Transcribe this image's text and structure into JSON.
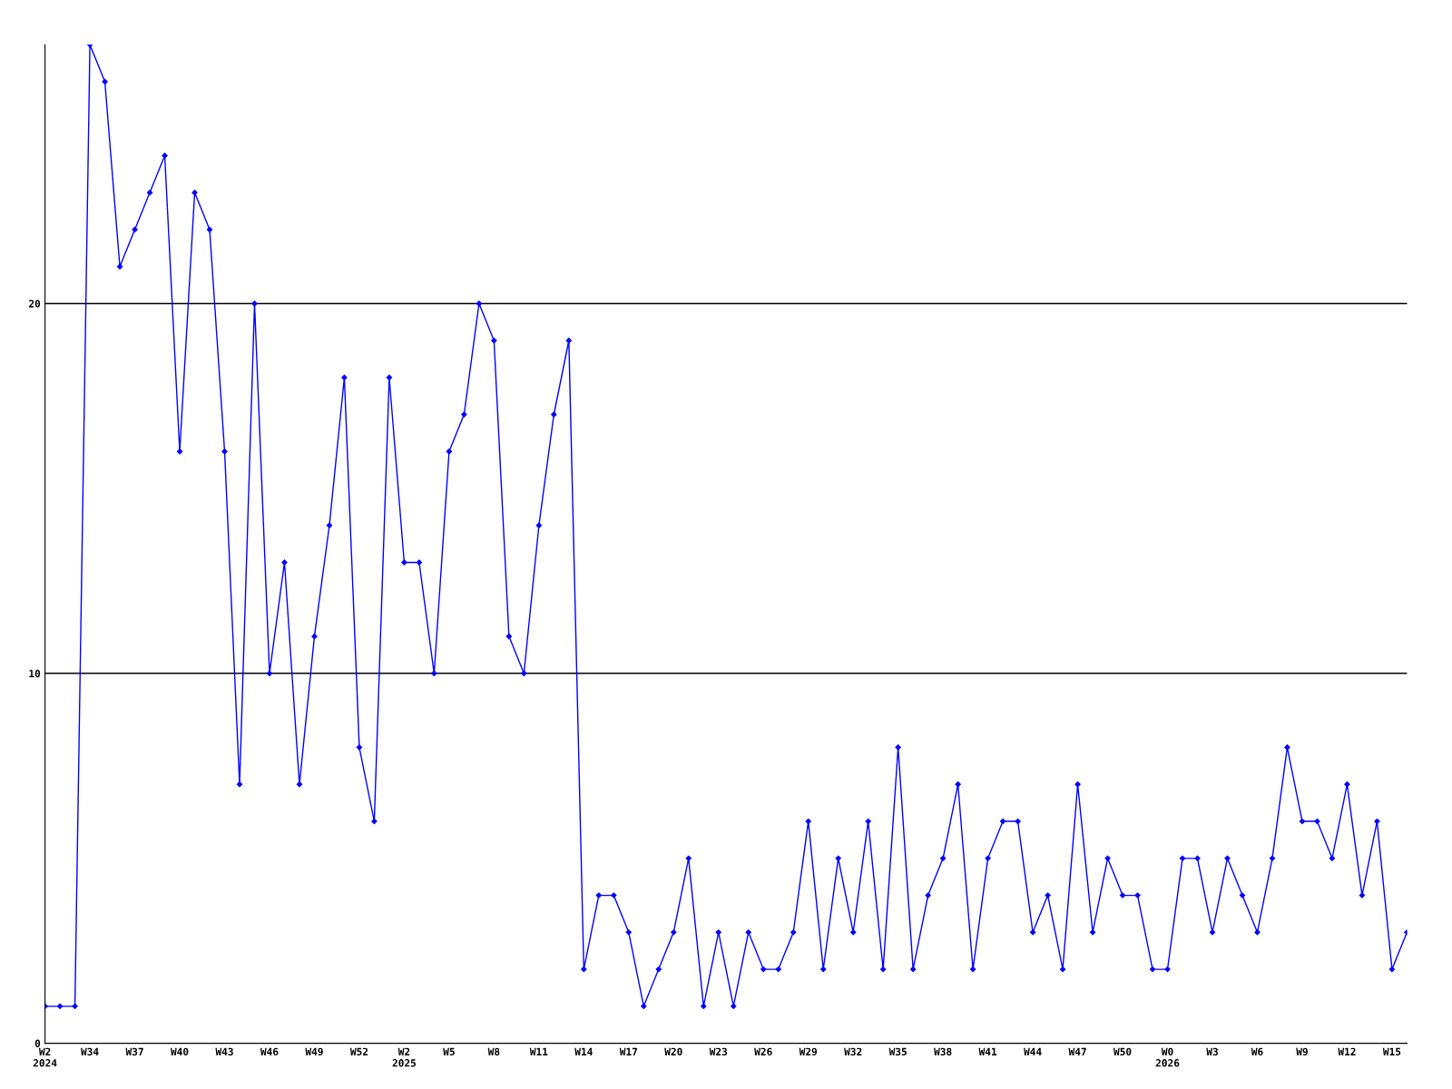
{
  "chart_data": {
    "type": "line",
    "categories": [
      "W2\n2024",
      null,
      null,
      "W34",
      null,
      null,
      "W37",
      null,
      null,
      "W40",
      null,
      null,
      "W43",
      null,
      null,
      "W46",
      null,
      null,
      "W49",
      null,
      null,
      "W52",
      null,
      null,
      "W2\n2025",
      null,
      null,
      "W5",
      null,
      null,
      "W8",
      null,
      null,
      "W11",
      null,
      null,
      "W14",
      null,
      null,
      "W17",
      null,
      null,
      "W20",
      null,
      null,
      "W23",
      null,
      null,
      "W26",
      null,
      null,
      "W29",
      null,
      null,
      "W32",
      null,
      null,
      "W35",
      null,
      null,
      "W38",
      null,
      null,
      "W41",
      null,
      null,
      "W44",
      null,
      null,
      "W47",
      null,
      null,
      "W50",
      null,
      null,
      "W0\n2026",
      null,
      null,
      "W3",
      null,
      null,
      "W6",
      null,
      null,
      "W9",
      null,
      null,
      "W12",
      null,
      null,
      "W15",
      null
    ],
    "series": [
      {
        "color": "#0000ff",
        "values": [
          1,
          1,
          1,
          27,
          26,
          21,
          22,
          23,
          24,
          16,
          23,
          22,
          16,
          7,
          20,
          10,
          13,
          7,
          11,
          14,
          18,
          8,
          6,
          18,
          13,
          13,
          10,
          16,
          17,
          20,
          19,
          11,
          10,
          14,
          17,
          19,
          2,
          4,
          4,
          3,
          1,
          2,
          3,
          5,
          1,
          3,
          1,
          3,
          2,
          2,
          3,
          6,
          2,
          5,
          3,
          6,
          2,
          8,
          2,
          4,
          5,
          7,
          2,
          5,
          6,
          6,
          3,
          4,
          2,
          7,
          3,
          5,
          4,
          4,
          2,
          2,
          5,
          5,
          3,
          5,
          4,
          3,
          5,
          8,
          6,
          6,
          5,
          7,
          4,
          6,
          2,
          3
        ]
      }
    ],
    "ylim": [
      0,
      27
    ],
    "yticks": [
      0,
      10,
      20
    ],
    "grid": "y",
    "marker": "diamond",
    "line_style": "solid",
    "legend": false
  }
}
